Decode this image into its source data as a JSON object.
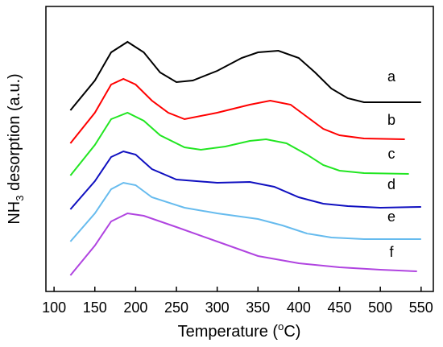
{
  "chart_data": {
    "type": "line",
    "xlabel": {
      "before": "Temperature (",
      "sup": "o",
      "after": "C)"
    },
    "ylabel": {
      "before": "NH",
      "sub": "3",
      "after": " desorption (a.u.)"
    },
    "xlim": [
      90,
      565
    ],
    "ylim": [
      0,
      354
    ],
    "xticks": [
      100,
      150,
      200,
      250,
      300,
      350,
      400,
      450,
      500,
      550
    ],
    "series": [
      {
        "name": "a",
        "color": "#000000",
        "x": [
          120,
          150,
          170,
          190,
          210,
          230,
          250,
          270,
          300,
          330,
          350,
          375,
          400,
          420,
          440,
          460,
          480,
          500,
          520,
          550
        ],
        "values": [
          225,
          262,
          297,
          310,
          297,
          272,
          260,
          262,
          274,
          290,
          297,
          299,
          290,
          272,
          252,
          240,
          235,
          235,
          235,
          235
        ]
      },
      {
        "name": "b",
        "color": "#ff0000",
        "x": [
          120,
          150,
          170,
          185,
          200,
          220,
          240,
          260,
          300,
          340,
          365,
          390,
          410,
          430,
          450,
          480,
          530
        ],
        "values": [
          184,
          222,
          257,
          264,
          257,
          237,
          222,
          214,
          222,
          232,
          237,
          232,
          217,
          202,
          194,
          190,
          189
        ]
      },
      {
        "name": "c",
        "color": "#22e622",
        "x": [
          120,
          150,
          170,
          190,
          210,
          230,
          260,
          280,
          310,
          340,
          360,
          385,
          410,
          430,
          450,
          480,
          535
        ],
        "values": [
          144,
          182,
          214,
          222,
          212,
          194,
          179,
          176,
          180,
          187,
          189,
          184,
          170,
          157,
          150,
          147,
          146
        ]
      },
      {
        "name": "d",
        "color": "#1010c0",
        "x": [
          120,
          150,
          170,
          185,
          200,
          220,
          250,
          300,
          340,
          370,
          400,
          430,
          460,
          500,
          550
        ],
        "values": [
          102,
          137,
          167,
          174,
          170,
          152,
          139,
          135,
          136,
          130,
          117,
          109,
          106,
          104,
          105
        ]
      },
      {
        "name": "e",
        "color": "#66bbee",
        "x": [
          120,
          150,
          170,
          185,
          200,
          220,
          260,
          300,
          350,
          380,
          410,
          440,
          480,
          550
        ],
        "values": [
          62,
          97,
          127,
          135,
          132,
          117,
          104,
          97,
          90,
          82,
          72,
          67,
          65,
          65
        ]
      },
      {
        "name": "f",
        "color": "#b044e0",
        "x": [
          120,
          150,
          170,
          190,
          210,
          250,
          300,
          350,
          400,
          450,
          500,
          545
        ],
        "values": [
          20,
          57,
          87,
          97,
          94,
          80,
          62,
          44,
          35,
          30,
          27,
          25
        ]
      }
    ]
  }
}
